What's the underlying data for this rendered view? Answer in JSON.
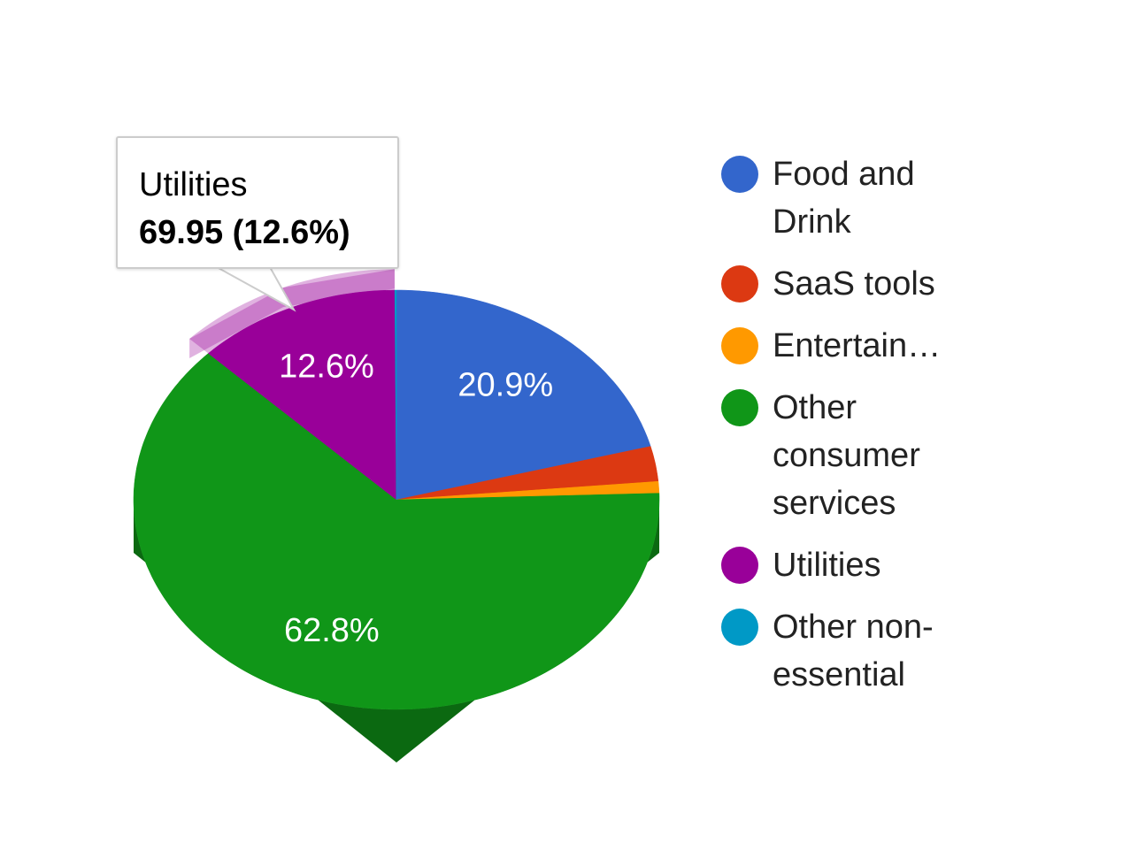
{
  "chart_data": {
    "type": "pie3d",
    "categories": [
      "Food and Drink",
      "SaaS tools",
      "Entertain…",
      "Other consumer services",
      "Utilities",
      "Other non-essential"
    ],
    "values": [
      20.9,
      2.7,
      0.9,
      62.8,
      12.6,
      0.1
    ],
    "value_labels": [
      "20.9%",
      null,
      null,
      "62.8%",
      "12.6%",
      null
    ],
    "colors": [
      "#3366cc",
      "#dc3912",
      "#ff9900",
      "#109618",
      "#990099",
      "#0099c6"
    ],
    "highlighted": 4,
    "legend": "right",
    "tooltip": {
      "title": "Utilities",
      "text": "69.95 (12.6%)"
    }
  }
}
